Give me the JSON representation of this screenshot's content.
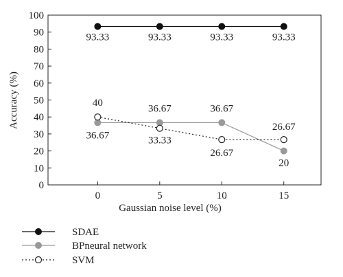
{
  "chart_data": {
    "type": "line",
    "xlabel": "Gaussian noise level (%)",
    "ylabel": "Accuracy (%)",
    "x": [
      0,
      5,
      10,
      15
    ],
    "xticks": [
      "0",
      "5",
      "10",
      "15"
    ],
    "xlim": [
      -4,
      18
    ],
    "ylim": [
      0,
      100
    ],
    "yticks": [
      "0",
      "10",
      "20",
      "30",
      "40",
      "50",
      "60",
      "70",
      "80",
      "90",
      "100"
    ],
    "grid": false,
    "legend_position": "bottom-left",
    "series": [
      {
        "name": "SDAE",
        "values": [
          93.33,
          93.33,
          93.33,
          93.33
        ],
        "labels": [
          "93.33",
          "93.33",
          "93.33",
          "93.33"
        ],
        "line_color": "#111111",
        "line_style": "solid",
        "marker": "filled-circle",
        "marker_color": "#111111"
      },
      {
        "name": "BPneural network",
        "values": [
          36.67,
          36.67,
          36.67,
          20
        ],
        "labels": [
          "36.67",
          "36.67",
          "36.67",
          "20"
        ],
        "line_color": "#999999",
        "line_style": "solid",
        "marker": "filled-circle",
        "marker_color": "#999999"
      },
      {
        "name": "SVM",
        "values": [
          40,
          33.33,
          26.67,
          26.67
        ],
        "labels": [
          "40",
          "33.33",
          "26.67",
          "26.67"
        ],
        "line_color": "#222222",
        "line_style": "dotted",
        "marker": "open-circle",
        "marker_color": "#222222"
      }
    ]
  }
}
